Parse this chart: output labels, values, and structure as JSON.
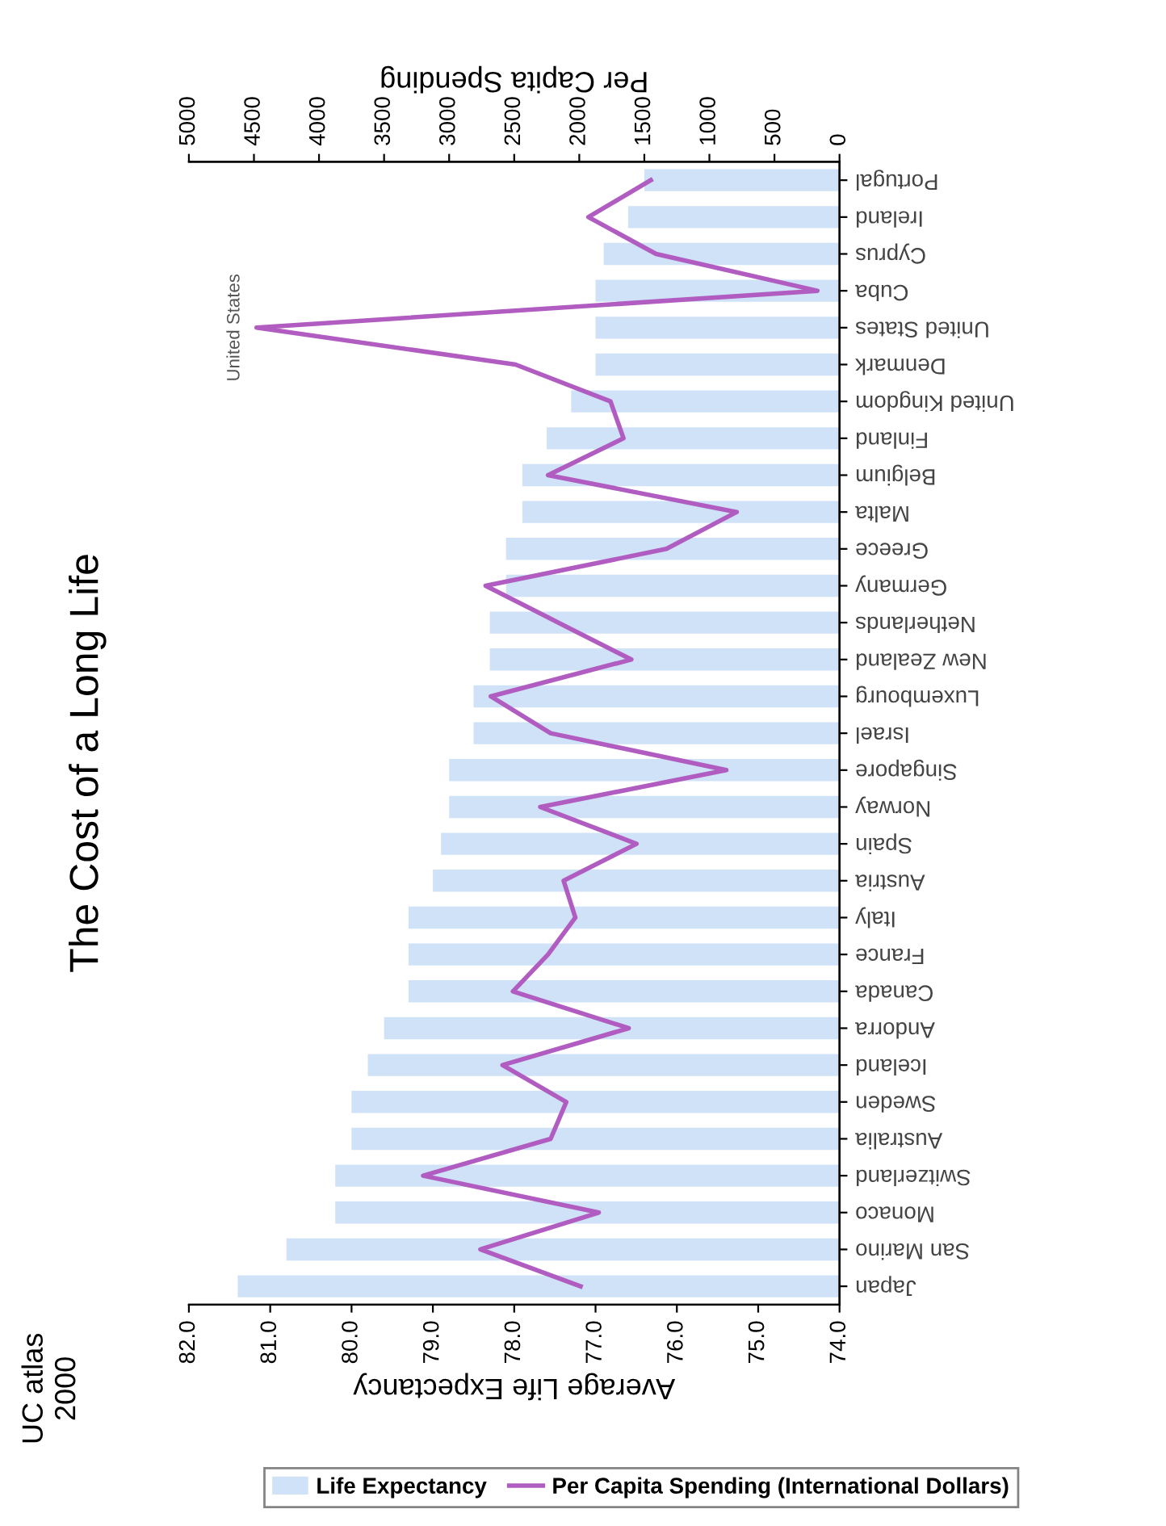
{
  "chart_data": {
    "type": "bar",
    "orientation": "horizontal",
    "title": "The Cost of a Long Life",
    "categories": [
      "Portugal",
      "Ireland",
      "Cyprus",
      "Cuba",
      "United States",
      "Denmark",
      "United Kingdom",
      "Finland",
      "Belgium",
      "Malta",
      "Greece",
      "Germany",
      "Netherlands",
      "New Zealand",
      "Luxembourg",
      "Israel",
      "Singapore",
      "Norway",
      "Spain",
      "Austria",
      "Italy",
      "France",
      "Canada",
      "Andorra",
      "Iceland",
      "Sweden",
      "Australia",
      "Switzerland",
      "Monaco",
      "San Marino",
      "Japan"
    ],
    "series": [
      {
        "name": "Life Expectancy",
        "type": "bar",
        "color": "#cfe2f7",
        "values": [
          76.4,
          76.6,
          76.9,
          77.0,
          77.0,
          77.0,
          77.3,
          77.6,
          77.9,
          77.9,
          78.1,
          78.1,
          78.3,
          78.3,
          78.5,
          78.5,
          78.8,
          78.8,
          78.9,
          79.0,
          79.3,
          79.3,
          79.3,
          79.6,
          79.8,
          80.0,
          80.0,
          80.2,
          80.2,
          80.8,
          81.4
        ]
      },
      {
        "name": "Per Capita Spending (International Dollars)",
        "type": "line",
        "axis": "x2",
        "color": "#b05cc0",
        "marker": "none",
        "line_style": "solid",
        "values": [
          1450,
          1930,
          1410,
          170,
          4480,
          2490,
          1760,
          1660,
          2240,
          790,
          1330,
          2720,
          2160,
          1600,
          2680,
          2220,
          870,
          2300,
          1560,
          2120,
          2030,
          2240,
          2510,
          1620,
          2590,
          2100,
          2220,
          3200,
          1850,
          2760,
          1990
        ]
      }
    ],
    "xlabel": "Average Life Expectancy",
    "x2label": "Per Capita Spending",
    "xlim": [
      82,
      74
    ],
    "xticks": [
      {
        "value": 82,
        "label": "82.0"
      },
      {
        "value": 81,
        "label": "81.0"
      },
      {
        "value": 80,
        "label": "80.0"
      },
      {
        "value": 79,
        "label": "79.0"
      },
      {
        "value": 78,
        "label": "78.0"
      },
      {
        "value": 77,
        "label": "77.0"
      },
      {
        "value": 76,
        "label": "76.0"
      },
      {
        "value": 75,
        "label": "75.0"
      },
      {
        "value": 74,
        "label": "74.0"
      }
    ],
    "x2lim": [
      5000,
      0
    ],
    "x2ticks": [
      5000,
      4500,
      4000,
      3500,
      3000,
      2500,
      2000,
      1500,
      1000,
      500,
      0
    ],
    "annotations": [
      "United States",
      "UC atlas",
      "2000"
    ],
    "legend": "bottom",
    "grid": false
  }
}
